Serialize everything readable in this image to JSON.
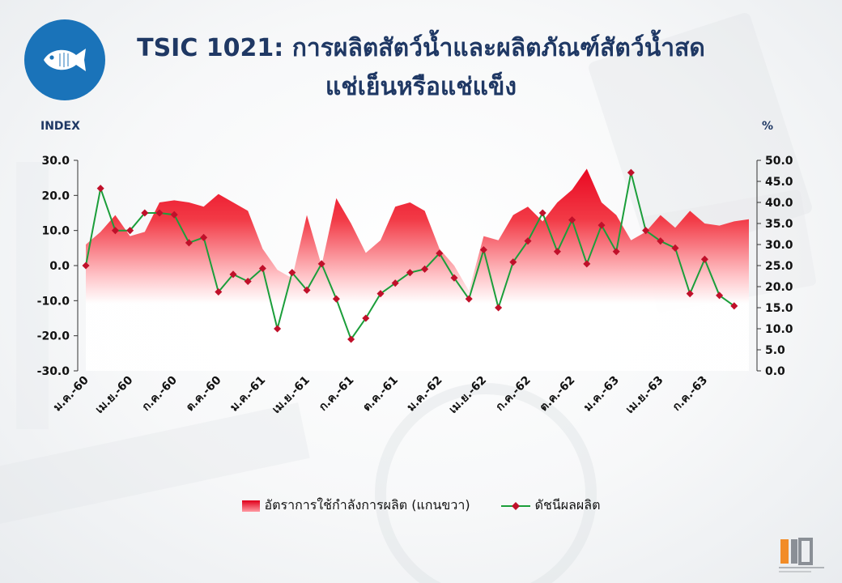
{
  "header": {
    "title_line1": "TSIC 1021: การผลิตสัตว์น้ำและผลิตภัณฑ์สัตว์น้ำสด",
    "title_line2": "แช่เย็นหรือแช่แข็ง",
    "icon": "fish-icon"
  },
  "units": {
    "left": "INDEX",
    "right": "%"
  },
  "legend": {
    "area_label": "อัตราการใช้กำลังการผลิต (แกนขวา)",
    "line_label": "ดัชนีผลผลิต"
  },
  "colors": {
    "area": "#e8001c",
    "line": "#1b9e3a",
    "marker": "#c0102a",
    "title": "#1f3864",
    "badge": "#1a73b9"
  },
  "chart_data": {
    "type": "line",
    "title": "TSIC 1021: การผลิตสัตว์น้ำและผลิตภัณฑ์สัตว์น้ำสด แช่เย็นหรือแช่แข็ง",
    "ylabel": "INDEX",
    "y2label": "%",
    "ylim": [
      -30,
      30
    ],
    "y2lim": [
      0,
      50
    ],
    "yticks": [
      "30.0",
      "20.0",
      "10.0",
      "0.0",
      "-10.0",
      "-20.0",
      "-30.0"
    ],
    "y2ticks": [
      "50.0",
      "45.0",
      "40.0",
      "35.0",
      "30.0",
      "25.0",
      "20.0",
      "15.0",
      "10.0",
      "5.0",
      "0.0"
    ],
    "x_tick_labels": [
      "ม.ค.-60",
      "เม.ย.-60",
      "ก.ค.-60",
      "ต.ค.-60",
      "ม.ค.-61",
      "เม.ย.-61",
      "ก.ค.-61",
      "ต.ค.-61",
      "ม.ค.-62",
      "เม.ย.-62",
      "ก.ค.-62",
      "ต.ค.-62",
      "ม.ค.-63",
      "เม.ย.-63",
      "ก.ค.-63"
    ],
    "x_tick_every": 3,
    "legend_position": "bottom",
    "grid": false,
    "series": [
      {
        "name": "อัตราการใช้กำลังการผลิต (แกนขวา)",
        "type": "area",
        "axis": "right",
        "values": [
          30.0,
          33.0,
          37.0,
          32.0,
          33.0,
          40.0,
          40.5,
          40.0,
          39.0,
          42.0,
          40.0,
          38.0,
          29.0,
          24.0,
          22.0,
          37.0,
          25.0,
          41.0,
          35.0,
          28.0,
          31.0,
          39.0,
          40.0,
          38.0,
          29.0,
          25.0,
          19.0,
          32.0,
          31.0,
          37.0,
          39.0,
          35.5,
          40.0,
          43.0,
          48.0,
          40.0,
          37.0,
          31.0,
          33.0,
          37.0,
          34.0,
          38.0,
          35.0,
          34.5,
          35.5,
          36.0
        ]
      },
      {
        "name": "ดัชนีผลผลิต",
        "type": "line",
        "axis": "left",
        "values": [
          0.0,
          22.0,
          10.0,
          10.0,
          15.0,
          15.0,
          14.5,
          6.5,
          8.0,
          -7.5,
          -2.5,
          -4.5,
          -0.8,
          -18.0,
          -2.0,
          -7.0,
          0.5,
          -9.5,
          -21.0,
          -15.0,
          -8.0,
          -5.0,
          -2.0,
          -1.0,
          3.5,
          -3.5,
          -9.5,
          4.5,
          -12.0,
          1.0,
          7.0,
          15.0,
          4.0,
          13.0,
          0.5,
          11.5,
          4.0,
          26.5,
          10.0,
          7.0,
          5.0,
          -8.0,
          1.8,
          -8.5,
          -11.5
        ]
      }
    ]
  }
}
